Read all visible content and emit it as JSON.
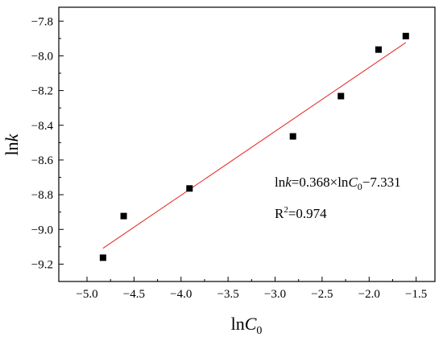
{
  "chart_data": {
    "type": "scatter",
    "xlabel": {
      "main": "ln",
      "italic": "C",
      "sub": "0"
    },
    "ylabel": {
      "main": "ln",
      "italic": "k"
    },
    "xlim": [
      -5.3,
      -1.3
    ],
    "ylim": [
      -9.3,
      -7.72
    ],
    "x_ticks": [
      -5.0,
      -4.5,
      -4.0,
      -3.5,
      -3.0,
      -2.5,
      -2.0,
      -1.5
    ],
    "x_tick_labels": [
      "−5.0",
      "−4.5",
      "−4.0",
      "−3.5",
      "−3.0",
      "−2.5",
      "−2.0",
      "−1.5"
    ],
    "y_ticks": [
      -9.2,
      -9.0,
      -8.8,
      -8.6,
      -8.4,
      -8.2,
      -8.0,
      -7.8
    ],
    "y_tick_labels": [
      "−9.2",
      "−9.0",
      "−8.8",
      "−8.6",
      "−8.4",
      "−8.2",
      "−8.0",
      "−7.8"
    ],
    "points": [
      {
        "x": -4.83,
        "y": -9.163
      },
      {
        "x": -4.61,
        "y": -8.923
      },
      {
        "x": -3.91,
        "y": -8.764
      },
      {
        "x": -2.81,
        "y": -8.464
      },
      {
        "x": -2.3,
        "y": -8.232
      },
      {
        "x": -1.9,
        "y": -7.964
      },
      {
        "x": -1.61,
        "y": -7.886
      }
    ],
    "fit": {
      "slope": 0.368,
      "intercept": -7.331,
      "x_range": [
        -4.83,
        -1.61
      ]
    },
    "annotations": {
      "equation": {
        "part1": "ln",
        "italic": "k",
        "part2": "=0.368×ln",
        "italic2": "C",
        "sub": "0",
        "part3": "−7.331"
      },
      "r2": {
        "base": "R",
        "sup": "2",
        "rest": "=0.974"
      }
    },
    "colors": {
      "points": "#000000",
      "fit_line": "#e8231f",
      "axes": "#000000"
    },
    "grid": false,
    "legend": "none"
  }
}
